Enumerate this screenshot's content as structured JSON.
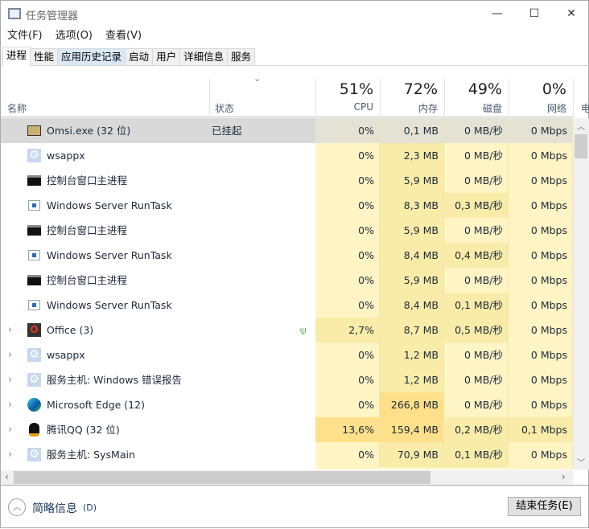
{
  "window": {
    "title": "任务管理器",
    "minimize": "—",
    "maximize": "☐",
    "close": "✕"
  },
  "menu": [
    "文件(F)",
    "选项(O)",
    "查看(V)"
  ],
  "tabs": [
    {
      "label": "进程",
      "active": true
    },
    {
      "label": "性能"
    },
    {
      "label": "应用历史记录",
      "hover": true
    },
    {
      "label": "启动"
    },
    {
      "label": "用户"
    },
    {
      "label": "详细信息"
    },
    {
      "label": "服务"
    }
  ],
  "columns": {
    "name": "名称",
    "status": "状态",
    "sort_icon": "chevron-down",
    "cpu": {
      "pct": "51%",
      "label": "CPU"
    },
    "mem": {
      "pct": "72%",
      "label": "内存"
    },
    "disk": {
      "pct": "49%",
      "label": "磁盘"
    },
    "net": {
      "pct": "0%",
      "label": "网络"
    },
    "power": "电"
  },
  "heat_colors": [
    "#fff4c4",
    "#f9eca8",
    "#ffe08a"
  ],
  "rows": [
    {
      "name": "Omsi.exe (32 位)",
      "status": "已挂起",
      "icon": "bus-app",
      "expand": false,
      "selected": true,
      "cpu": "0%",
      "mem": "0,1 MB",
      "disk": "0 MB/秒",
      "net": "0 Mbps",
      "heat": [
        0,
        0,
        0,
        0
      ]
    },
    {
      "name": "wsappx",
      "status": "",
      "icon": "gear",
      "expand": false,
      "cpu": "0%",
      "mem": "2,3 MB",
      "disk": "0 MB/秒",
      "net": "0 Mbps",
      "heat": [
        0,
        1,
        0,
        0
      ]
    },
    {
      "name": "控制台窗口主进程",
      "status": "",
      "icon": "console",
      "expand": false,
      "cpu": "0%",
      "mem": "5,9 MB",
      "disk": "0 MB/秒",
      "net": "0 Mbps",
      "heat": [
        0,
        1,
        0,
        0
      ]
    },
    {
      "name": "Windows Server RunTask",
      "status": "",
      "icon": "window",
      "expand": false,
      "cpu": "0%",
      "mem": "8,3 MB",
      "disk": "0,3 MB/秒",
      "net": "0 Mbps",
      "heat": [
        0,
        1,
        1,
        0
      ]
    },
    {
      "name": "控制台窗口主进程",
      "status": "",
      "icon": "console",
      "expand": false,
      "cpu": "0%",
      "mem": "5,9 MB",
      "disk": "0 MB/秒",
      "net": "0 Mbps",
      "heat": [
        0,
        1,
        0,
        0
      ]
    },
    {
      "name": "Windows Server RunTask",
      "status": "",
      "icon": "window",
      "expand": false,
      "cpu": "0%",
      "mem": "8,4 MB",
      "disk": "0,4 MB/秒",
      "net": "0 Mbps",
      "heat": [
        0,
        1,
        1,
        0
      ]
    },
    {
      "name": "控制台窗口主进程",
      "status": "",
      "icon": "console",
      "expand": false,
      "cpu": "0%",
      "mem": "5,9 MB",
      "disk": "0 MB/秒",
      "net": "0 Mbps",
      "heat": [
        0,
        1,
        0,
        0
      ]
    },
    {
      "name": "Windows Server RunTask",
      "status": "",
      "icon": "window",
      "expand": false,
      "cpu": "0%",
      "mem": "8,4 MB",
      "disk": "0,1 MB/秒",
      "net": "0 Mbps",
      "heat": [
        0,
        1,
        1,
        0
      ]
    },
    {
      "name": "Office (3)",
      "status": "",
      "icon": "office",
      "expand": true,
      "leaf": true,
      "cpu": "2,7%",
      "mem": "8,7 MB",
      "disk": "0,5 MB/秒",
      "net": "0 Mbps",
      "heat": [
        1,
        1,
        1,
        0
      ]
    },
    {
      "name": "wsappx",
      "status": "",
      "icon": "gear",
      "expand": true,
      "cpu": "0%",
      "mem": "1,2 MB",
      "disk": "0 MB/秒",
      "net": "0 Mbps",
      "heat": [
        0,
        1,
        0,
        0
      ]
    },
    {
      "name": "服务主机: Windows 错误报告",
      "status": "",
      "icon": "gear",
      "expand": true,
      "cpu": "0%",
      "mem": "1,2 MB",
      "disk": "0 MB/秒",
      "net": "0 Mbps",
      "heat": [
        0,
        1,
        0,
        0
      ]
    },
    {
      "name": "Microsoft Edge (12)",
      "status": "",
      "icon": "edge",
      "expand": true,
      "cpu": "0%",
      "mem": "266,8 MB",
      "disk": "0 MB/秒",
      "net": "0 Mbps",
      "heat": [
        0,
        2,
        0,
        0
      ]
    },
    {
      "name": "腾讯QQ (32 位)",
      "status": "",
      "icon": "qq",
      "expand": true,
      "cpu": "13,6%",
      "mem": "159,4 MB",
      "disk": "0,2 MB/秒",
      "net": "0,1 Mbps",
      "heat": [
        2,
        2,
        1,
        1
      ]
    },
    {
      "name": "服务主机: SysMain",
      "status": "",
      "icon": "gear",
      "expand": true,
      "cpu": "0%",
      "mem": "70,9 MB",
      "disk": "0,1 MB/秒",
      "net": "0 Mbps",
      "heat": [
        0,
        1,
        1,
        0
      ]
    }
  ],
  "footer": {
    "fewer_details": "简略信息",
    "fewer_key": "(D)",
    "end_task": "结束任务(E)"
  }
}
